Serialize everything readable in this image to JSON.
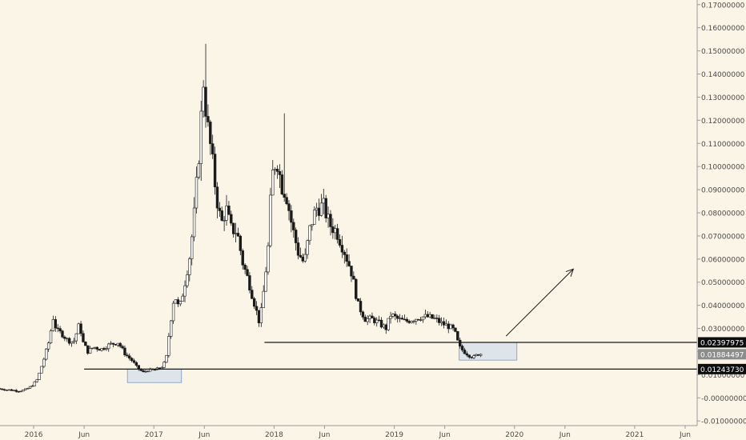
{
  "chart_data": {
    "type": "candlestick",
    "title": "",
    "ylim": [
      -0.012,
      0.172
    ],
    "y_ticks": [
      "0.17000000",
      "0.16000000",
      "0.15000000",
      "0.14000000",
      "0.13000000",
      "0.12000000",
      "0.11000000",
      "0.10000000",
      "0.09000000",
      "0.08000000",
      "0.07000000",
      "0.06000000",
      "0.05000000",
      "0.04000000",
      "0.03000000",
      "0.02000000",
      "0.01000000",
      "-0.00000000",
      "-0.01000000"
    ],
    "y_tick_values": [
      0.17,
      0.16,
      0.15,
      0.14,
      0.13,
      0.12,
      0.11,
      0.1,
      0.09,
      0.08,
      0.07,
      0.06,
      0.05,
      0.04,
      0.03,
      0.02,
      0.01,
      0.0,
      -0.01
    ],
    "x_ticks": [
      {
        "label": "2016",
        "t": 2016.0
      },
      {
        "label": "Jun",
        "t": 2016.42
      },
      {
        "label": "2017",
        "t": 2017.0
      },
      {
        "label": "Jun",
        "t": 2017.42
      },
      {
        "label": "2018",
        "t": 2018.0
      },
      {
        "label": "Jun",
        "t": 2018.42
      },
      {
        "label": "2019",
        "t": 2019.0
      },
      {
        "label": "Jun",
        "t": 2019.42
      },
      {
        "label": "2020",
        "t": 2020.0
      },
      {
        "label": "Jun",
        "t": 2020.42
      },
      {
        "label": "2021",
        "t": 2021.0
      },
      {
        "label": "Jun",
        "t": 2021.42
      }
    ],
    "xlim": [
      2015.72,
      2021.52
    ],
    "grid": false,
    "price_path": [
      [
        2015.72,
        0.004
      ],
      [
        2015.8,
        0.0035
      ],
      [
        2015.9,
        0.003
      ],
      [
        2015.95,
        0.0035
      ],
      [
        2016.0,
        0.005
      ],
      [
        2016.05,
        0.008
      ],
      [
        2016.1,
        0.016
      ],
      [
        2016.15,
        0.025
      ],
      [
        2016.18,
        0.035
      ],
      [
        2016.21,
        0.029
      ],
      [
        2016.25,
        0.028
      ],
      [
        2016.3,
        0.025
      ],
      [
        2016.35,
        0.024
      ],
      [
        2016.4,
        0.032
      ],
      [
        2016.43,
        0.024
      ],
      [
        2016.47,
        0.02
      ],
      [
        2016.52,
        0.022
      ],
      [
        2016.58,
        0.021
      ],
      [
        2016.65,
        0.023
      ],
      [
        2016.72,
        0.024
      ],
      [
        2016.78,
        0.019
      ],
      [
        2016.84,
        0.016
      ],
      [
        2016.88,
        0.013
      ],
      [
        2016.93,
        0.011
      ],
      [
        2016.97,
        0.012
      ],
      [
        2017.02,
        0.012
      ],
      [
        2017.08,
        0.013
      ],
      [
        2017.12,
        0.016
      ],
      [
        2017.15,
        0.03
      ],
      [
        2017.19,
        0.045
      ],
      [
        2017.23,
        0.038
      ],
      [
        2017.27,
        0.048
      ],
      [
        2017.32,
        0.062
      ],
      [
        2017.36,
        0.082
      ],
      [
        2017.4,
        0.11
      ],
      [
        2017.43,
        0.138
      ],
      [
        2017.46,
        0.12
      ],
      [
        2017.5,
        0.105
      ],
      [
        2017.54,
        0.087
      ],
      [
        2017.58,
        0.075
      ],
      [
        2017.62,
        0.082
      ],
      [
        2017.66,
        0.073
      ],
      [
        2017.71,
        0.072
      ],
      [
        2017.76,
        0.058
      ],
      [
        2017.81,
        0.05
      ],
      [
        2017.86,
        0.04
      ],
      [
        2017.9,
        0.032
      ],
      [
        2017.93,
        0.045
      ],
      [
        2017.97,
        0.065
      ],
      [
        2018.0,
        0.095
      ],
      [
        2018.04,
        0.104
      ],
      [
        2018.08,
        0.092
      ],
      [
        2018.12,
        0.088
      ],
      [
        2018.17,
        0.074
      ],
      [
        2018.22,
        0.063
      ],
      [
        2018.27,
        0.058
      ],
      [
        2018.32,
        0.074
      ],
      [
        2018.37,
        0.082
      ],
      [
        2018.43,
        0.083
      ],
      [
        2018.48,
        0.075
      ],
      [
        2018.54,
        0.072
      ],
      [
        2018.6,
        0.064
      ],
      [
        2018.66,
        0.055
      ],
      [
        2018.72,
        0.04
      ],
      [
        2018.78,
        0.034
      ],
      [
        2018.84,
        0.034
      ],
      [
        2018.9,
        0.032
      ],
      [
        2018.95,
        0.03
      ],
      [
        2018.99,
        0.036
      ],
      [
        2019.05,
        0.034
      ],
      [
        2019.11,
        0.033
      ],
      [
        2019.17,
        0.034
      ],
      [
        2019.24,
        0.035
      ],
      [
        2019.3,
        0.035
      ],
      [
        2019.36,
        0.034
      ],
      [
        2019.42,
        0.032
      ],
      [
        2019.47,
        0.031
      ],
      [
        2019.52,
        0.029
      ],
      [
        2019.56,
        0.022
      ],
      [
        2019.6,
        0.02
      ],
      [
        2019.64,
        0.0185
      ],
      [
        2019.68,
        0.0175
      ],
      [
        2019.72,
        0.019
      ]
    ],
    "spikes": [
      {
        "t": 2017.43,
        "high": 0.153
      },
      {
        "t": 2018.08,
        "high": 0.123
      }
    ],
    "support_levels": [
      {
        "value": 0.02397975,
        "label": "0.02397975",
        "from": 2017.92
      },
      {
        "value": 0.0124373,
        "label": "0.01243730",
        "from": 2016.42
      }
    ],
    "current_price": {
      "value": 0.01884497,
      "label": "0.01884497"
    },
    "highlight_boxes": [
      {
        "t0": 2016.78,
        "t1": 2017.23,
        "y0": 0.0066,
        "y1": 0.0124
      },
      {
        "t0": 2019.54,
        "t1": 2020.02,
        "y0": 0.0163,
        "y1": 0.024
      }
    ],
    "arrow": {
      "t0": 2019.93,
      "y0": 0.0267,
      "t1": 2020.49,
      "y1": 0.0557
    }
  },
  "colors": {
    "background": "#fbf5e7",
    "candle": "#1a1a1a",
    "candle_fill_up": "#ffffff",
    "line": "#1a1a1a",
    "box_fill": "#c9d8ec",
    "box_stroke": "#7d98bd",
    "label_bg_dark": "#0d0d0d",
    "label_bg_gray": "#8c8c8c",
    "label_text": "#ffffff",
    "axis_text": "#4a4a4a",
    "axis_line": "#9a9a9a"
  }
}
